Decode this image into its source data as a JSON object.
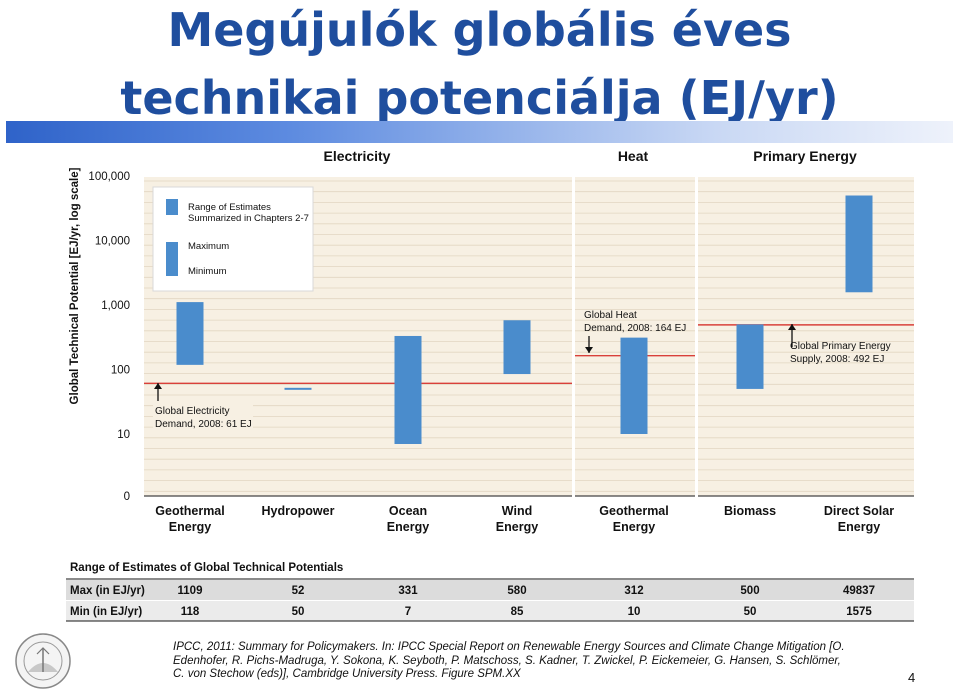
{
  "slide": {
    "title_line1": "Megújulók globális éves",
    "title_line2": "technikai potenciálja (EJ/yr)",
    "citation_line1": "IPCC, 2011: Summary for Policymakers. In: IPCC Special Report on Renewable Energy Sources and Climate Change Mitigation [O.",
    "citation_line2": "Edenhofer, R. Pichs-Madruga, Y. Sokona, K. Seyboth, P. Matschoss, S. Kadner, T. Zwickel, P. Eickemeier, G. Hansen, S. Schlömer,",
    "citation_line3": "C. von Stechow (eds)], Cambridge University Press. Figure SPM.XX",
    "page_number": "4",
    "logo_text": "SZENT ISTVÁN EGYETEM"
  },
  "chart_data": {
    "type": "bar",
    "scale": "log",
    "ylabel": "Global Technical Potential [EJ/yr, log scale]",
    "ytick_labels": [
      "100,000",
      "10,000",
      "1,000",
      "100",
      "10",
      "0"
    ],
    "yticks": [
      100000,
      10000,
      1000,
      100,
      10
    ],
    "group_headers": [
      "Electricity",
      "Heat",
      "Primary Energy"
    ],
    "categories": [
      {
        "line1": "Geothermal",
        "line2": "Energy"
      },
      {
        "line1": "Hydropower",
        "line2": ""
      },
      {
        "line1": "Ocean",
        "line2": "Energy"
      },
      {
        "line1": "Wind",
        "line2": "Energy"
      },
      {
        "line1": "Geothermal",
        "line2": "Energy"
      },
      {
        "line1": "Biomass",
        "line2": ""
      },
      {
        "line1": "Direct Solar",
        "line2": "Energy"
      }
    ],
    "max": [
      1109,
      52,
      331,
      580,
      312,
      500,
      49837
    ],
    "min": [
      118,
      50,
      7,
      85,
      10,
      50,
      1575
    ],
    "legend": {
      "range_label_line1": "Range of Estimates",
      "range_label_line2": "Summarized in Chapters 2-7",
      "max_label": "Maximum",
      "min_label": "Minimum"
    },
    "reference_lines": [
      {
        "label_line1": "Global Electricity",
        "label_line2": "Demand, 2008: 61 EJ",
        "value": 61
      },
      {
        "label_line1": "Global Heat",
        "label_line2": "Demand, 2008: 164 EJ",
        "value": 164
      },
      {
        "label_line1": "Global Primary Energy",
        "label_line2": "Supply, 2008: 492 EJ",
        "value": 492
      }
    ],
    "table": {
      "title": "Range of Estimates of Global Technical Potentials",
      "max_label": "Max (in EJ/yr)",
      "min_label": "Min (in EJ/yr)",
      "max_values": [
        "1109",
        "52",
        "331",
        "580",
        "312",
        "500",
        "49837"
      ],
      "min_values": [
        "118",
        "50",
        "7",
        "85",
        "10",
        "50",
        "1575"
      ]
    },
    "colors": {
      "bar": "#4a8ccc",
      "reference_line": "#d9403a",
      "panel_bg": "#f7f0e3",
      "gridline": "#e2d6c2",
      "title": "#1f4e9e"
    }
  }
}
